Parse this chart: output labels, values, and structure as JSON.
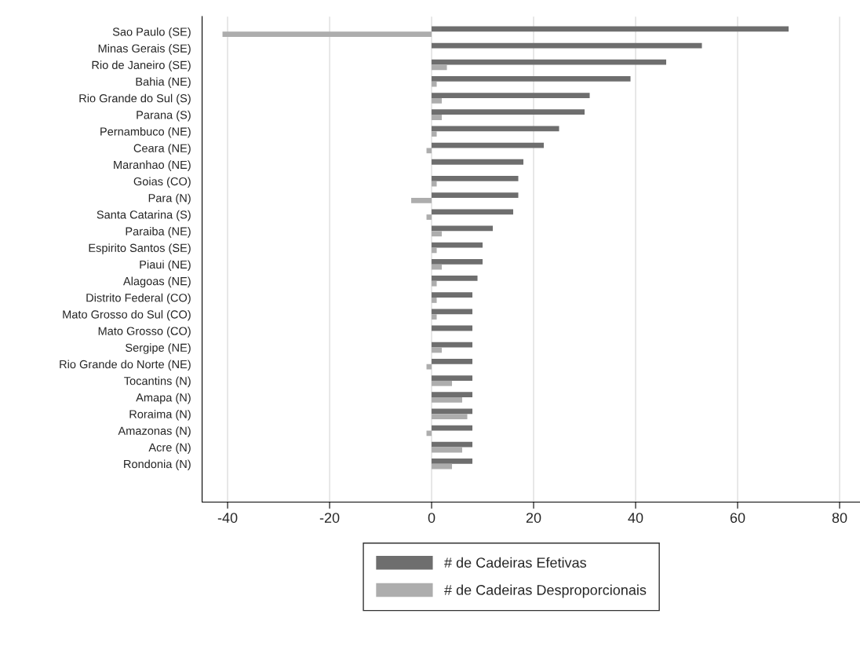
{
  "chart_data": {
    "type": "bar",
    "orientation": "horizontal",
    "categories": [
      "Sao Paulo (SE)",
      "Minas Gerais (SE)",
      "Rio de Janeiro (SE)",
      "Bahia (NE)",
      "Rio Grande do Sul (S)",
      "Parana (S)",
      "Pernambuco (NE)",
      "Ceara (NE)",
      "Maranhao (NE)",
      "Goias (CO)",
      "Para (N)",
      "Santa Catarina (S)",
      "Paraiba (NE)",
      "Espirito Santos (SE)",
      "Piaui (NE)",
      "Alagoas (NE)",
      "Distrito Federal (CO)",
      "Mato Grosso do Sul (CO)",
      "Mato Grosso (CO)",
      "Sergipe (NE)",
      "Rio Grande do Norte (NE)",
      "Tocantins (N)",
      "Amapa (N)",
      "Roraima (N)",
      "Amazonas (N)",
      "Acre (N)",
      "Rondonia (N)"
    ],
    "series": [
      {
        "name": "# de Cadeiras Efetivas",
        "color": "#6e6e6e",
        "values": [
          70,
          53,
          46,
          39,
          31,
          30,
          25,
          22,
          18,
          17,
          17,
          16,
          12,
          10,
          10,
          9,
          8,
          8,
          8,
          8,
          8,
          8,
          8,
          8,
          8,
          8,
          8
        ]
      },
      {
        "name": "# de Cadeiras Desproporcionais",
        "color": "#adadad",
        "values": [
          -41,
          0,
          3,
          1,
          2,
          2,
          1,
          -1,
          0,
          1,
          -4,
          -1,
          2,
          1,
          2,
          1,
          1,
          1,
          0,
          2,
          -1,
          4,
          6,
          7,
          -1,
          6,
          4
        ]
      }
    ],
    "xlim": [
      -45,
      84
    ],
    "xticks": [
      -40,
      -20,
      0,
      20,
      40,
      60,
      80
    ],
    "grid": "x",
    "legend": "bottom"
  }
}
